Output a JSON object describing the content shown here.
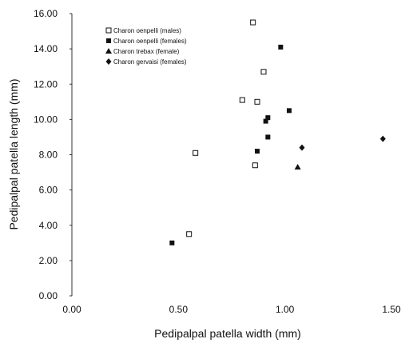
{
  "chart_data": {
    "type": "scatter",
    "xlabel": "Pedipalpal patella width (mm)",
    "ylabel": "Pedipalpal patella length (mm)",
    "xlim": [
      0,
      1.5
    ],
    "ylim": [
      0,
      16
    ],
    "x_ticks": [
      "0.00",
      "0.50",
      "1.00",
      "1.50"
    ],
    "y_ticks": [
      "0.00",
      "2.00",
      "4.00",
      "6.00",
      "8.00",
      "10.00",
      "12.00",
      "14.00",
      "16.00"
    ],
    "grid": false,
    "legend_position": "top-left",
    "series": [
      {
        "name": "Charon oenpelli (males)",
        "marker": "square-open",
        "points": [
          {
            "x": 0.55,
            "y": 3.5
          },
          {
            "x": 0.58,
            "y": 8.1
          },
          {
            "x": 0.8,
            "y": 11.1
          },
          {
            "x": 0.86,
            "y": 7.4
          },
          {
            "x": 0.85,
            "y": 15.5
          },
          {
            "x": 0.87,
            "y": 11.0
          },
          {
            "x": 0.9,
            "y": 12.7
          }
        ]
      },
      {
        "name": "Charon oenpelli (females)",
        "marker": "square-filled",
        "points": [
          {
            "x": 0.47,
            "y": 3.0
          },
          {
            "x": 0.87,
            "y": 8.2
          },
          {
            "x": 0.91,
            "y": 9.9
          },
          {
            "x": 0.92,
            "y": 10.1
          },
          {
            "x": 0.92,
            "y": 9.0
          },
          {
            "x": 0.98,
            "y": 14.1
          },
          {
            "x": 1.02,
            "y": 10.5
          }
        ]
      },
      {
        "name": "Charon trebax (female)",
        "marker": "triangle-filled",
        "points": [
          {
            "x": 1.06,
            "y": 7.3
          }
        ]
      },
      {
        "name": "Charon gervaisi (females)",
        "marker": "diamond-filled",
        "points": [
          {
            "x": 1.08,
            "y": 8.4
          },
          {
            "x": 1.46,
            "y": 8.9
          }
        ]
      }
    ]
  }
}
